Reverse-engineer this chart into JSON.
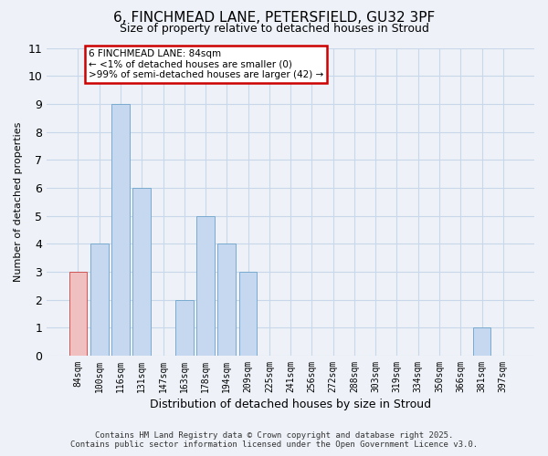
{
  "title": "6, FINCHMEAD LANE, PETERSFIELD, GU32 3PF",
  "subtitle": "Size of property relative to detached houses in Stroud",
  "xlabel": "Distribution of detached houses by size in Stroud",
  "ylabel": "Number of detached properties",
  "categories": [
    "84sqm",
    "100sqm",
    "116sqm",
    "131sqm",
    "147sqm",
    "163sqm",
    "178sqm",
    "194sqm",
    "209sqm",
    "225sqm",
    "241sqm",
    "256sqm",
    "272sqm",
    "288sqm",
    "303sqm",
    "319sqm",
    "334sqm",
    "350sqm",
    "366sqm",
    "381sqm",
    "397sqm"
  ],
  "values": [
    3,
    4,
    9,
    6,
    0,
    2,
    5,
    4,
    3,
    0,
    0,
    0,
    0,
    0,
    0,
    0,
    0,
    0,
    0,
    1,
    0
  ],
  "highlight_index": 0,
  "bar_color": "#c5d8f0",
  "bar_edge_color": "#7aaad0",
  "highlight_color": "#f0c0c0",
  "highlight_edge_color": "#cc5555",
  "grid_color": "#c8d8ea",
  "background_color": "#eef2f8",
  "plot_bg_color": "#eef2f8",
  "annotation_text": "6 FINCHMEAD LANE: 84sqm\n← <1% of detached houses are smaller (0)\n>99% of semi-detached houses are larger (42) →",
  "annotation_box_color": "#ffffff",
  "annotation_border_color": "#cc0000",
  "ylim": [
    0,
    11
  ],
  "yticks": [
    0,
    1,
    2,
    3,
    4,
    5,
    6,
    7,
    8,
    9,
    10,
    11
  ],
  "footer_line1": "Contains HM Land Registry data © Crown copyright and database right 2025.",
  "footer_line2": "Contains public sector information licensed under the Open Government Licence v3.0."
}
